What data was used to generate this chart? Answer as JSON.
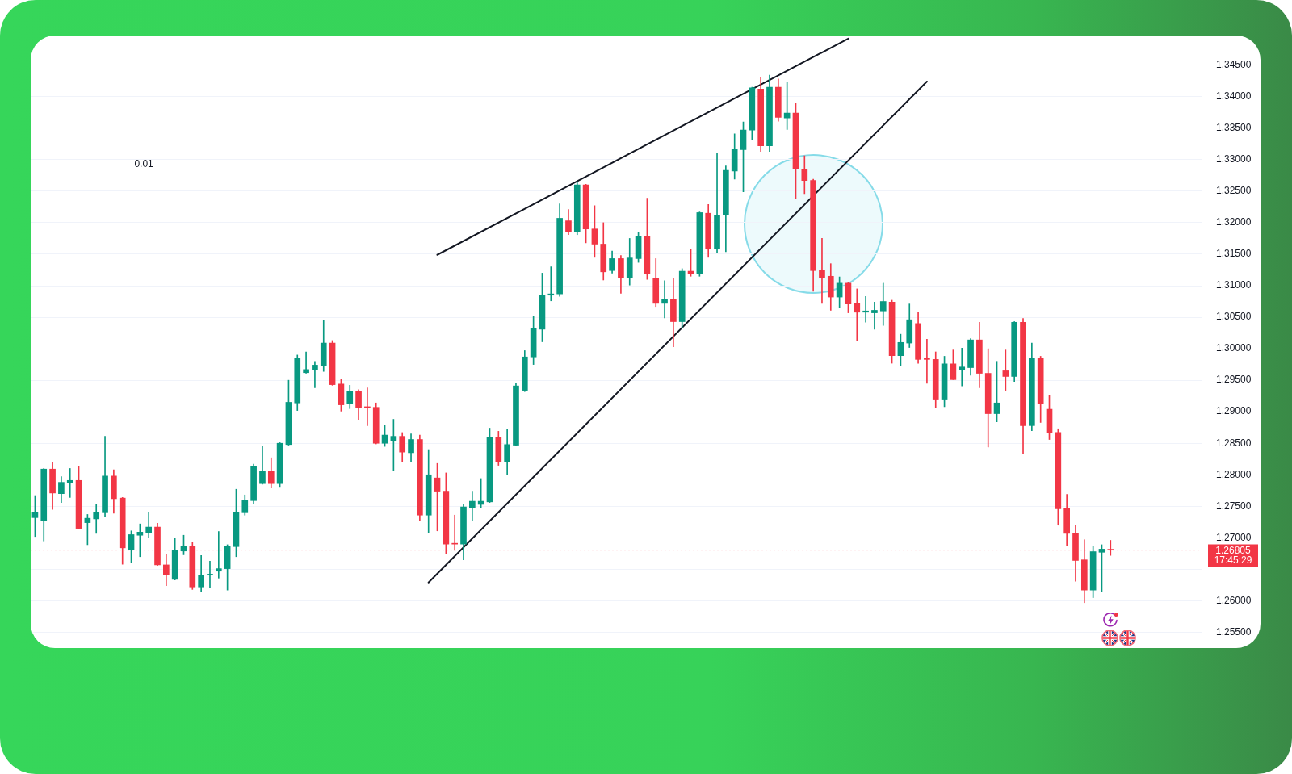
{
  "chart_data": {
    "type": "candlestick",
    "categories": [
      null,
      null,
      null,
      null,
      null,
      null,
      null,
      null,
      null,
      null,
      null,
      null,
      null,
      null,
      null,
      null,
      null,
      null,
      null,
      null,
      null,
      null,
      null,
      null,
      null,
      null,
      null,
      null,
      null,
      null,
      null,
      null,
      null,
      null,
      null,
      null,
      null,
      null,
      null,
      null,
      null,
      null,
      null,
      null,
      null,
      null,
      null,
      null,
      null,
      null,
      null,
      null,
      null,
      null,
      null,
      null,
      null,
      null,
      null,
      null,
      null,
      null,
      null,
      null,
      null,
      null,
      null,
      null,
      null,
      null,
      null,
      null,
      null,
      null,
      null,
      null,
      null,
      null,
      null,
      null,
      null,
      null,
      null,
      null,
      null,
      null,
      null,
      null,
      null,
      null,
      null,
      null,
      null,
      null,
      null,
      null,
      null,
      null,
      null,
      null,
      null,
      null,
      null,
      null,
      null,
      null,
      null,
      null,
      null,
      null,
      null,
      null,
      null,
      null,
      null,
      null,
      null,
      null,
      null,
      null,
      null,
      null,
      null,
      null,
      null,
      null,
      null,
      null,
      null,
      null,
      null,
      null,
      null,
      null
    ],
    "ohlc": [
      [
        1.2732,
        1.2767,
        1.2702,
        1.2741
      ],
      [
        1.2727,
        1.281,
        1.2695,
        1.2809
      ],
      [
        1.2809,
        1.2819,
        1.2745,
        1.2771
      ],
      [
        1.277,
        1.2797,
        1.2756,
        1.2788
      ],
      [
        1.2787,
        1.281,
        1.2764,
        1.2791
      ],
      [
        1.2791,
        1.2814,
        1.2714,
        1.2715
      ],
      [
        1.2724,
        1.2737,
        1.2689,
        1.2731
      ],
      [
        1.273,
        1.2753,
        1.2707,
        1.2741
      ],
      [
        1.2741,
        1.2861,
        1.2733,
        1.2798
      ],
      [
        1.2798,
        1.2808,
        1.2739,
        1.2762
      ],
      [
        1.2763,
        1.2764,
        1.2658,
        1.2684
      ],
      [
        1.2681,
        1.2711,
        1.2661,
        1.2705
      ],
      [
        1.2704,
        1.2722,
        1.267,
        1.2709
      ],
      [
        1.2708,
        1.2741,
        1.27,
        1.2717
      ],
      [
        1.2717,
        1.2723,
        1.2656,
        1.2657
      ],
      [
        1.2657,
        1.2674,
        1.2624,
        1.2641
      ],
      [
        1.2634,
        1.2699,
        1.2633,
        1.268
      ],
      [
        1.2679,
        1.2704,
        1.2673,
        1.2686
      ],
      [
        1.2686,
        1.2693,
        1.2618,
        1.2622
      ],
      [
        1.2622,
        1.2672,
        1.2615,
        1.2641
      ],
      [
        1.2641,
        1.2663,
        1.2621,
        1.2642
      ],
      [
        1.2647,
        1.271,
        1.2636,
        1.2651
      ],
      [
        1.2651,
        1.2689,
        1.2617,
        1.2686
      ],
      [
        1.2686,
        1.2777,
        1.267,
        1.2741
      ],
      [
        1.2741,
        1.2768,
        1.2736,
        1.2759
      ],
      [
        1.2759,
        1.2817,
        1.2754,
        1.2814
      ],
      [
        1.2786,
        1.2846,
        1.2785,
        1.2806
      ],
      [
        1.2806,
        1.2827,
        1.2779,
        1.2786
      ],
      [
        1.2786,
        1.2851,
        1.278,
        1.285
      ],
      [
        1.2848,
        1.295,
        1.2847,
        1.2915
      ],
      [
        1.2914,
        1.299,
        1.2902,
        1.2985
      ],
      [
        1.2962,
        1.2995,
        1.2961,
        1.2967
      ],
      [
        1.2967,
        1.298,
        1.2938,
        1.2974
      ],
      [
        1.2973,
        1.3045,
        1.2964,
        1.3009
      ],
      [
        1.3009,
        1.3013,
        1.2942,
        1.2943
      ],
      [
        1.2944,
        1.2951,
        1.2901,
        1.2911
      ],
      [
        1.2913,
        1.2942,
        1.2905,
        1.2933
      ],
      [
        1.2933,
        1.2935,
        1.2888,
        1.2906
      ],
      [
        1.2908,
        1.2938,
        1.2878,
        1.2906
      ],
      [
        1.2907,
        1.2914,
        1.2849,
        1.285
      ],
      [
        1.285,
        1.2878,
        1.2845,
        1.2863
      ],
      [
        1.2854,
        1.2888,
        1.2807,
        1.2861
      ],
      [
        1.2861,
        1.2867,
        1.2821,
        1.2836
      ],
      [
        1.2835,
        1.2865,
        1.282,
        1.2856
      ],
      [
        1.2856,
        1.2863,
        1.2727,
        1.2736
      ],
      [
        1.2736,
        1.284,
        1.2708,
        1.28
      ],
      [
        1.2795,
        1.2818,
        1.2711,
        1.2774
      ],
      [
        1.2774,
        1.2803,
        1.2674,
        1.269
      ],
      [
        1.2691,
        1.2736,
        1.268,
        1.269
      ],
      [
        1.269,
        1.2753,
        1.2665,
        1.2749
      ],
      [
        1.2748,
        1.2774,
        1.2727,
        1.2758
      ],
      [
        1.2753,
        1.2794,
        1.2748,
        1.2758
      ],
      [
        1.2757,
        1.2874,
        1.2756,
        1.2859
      ],
      [
        1.2859,
        1.2869,
        1.2815,
        1.282
      ],
      [
        1.282,
        1.2872,
        1.28,
        1.2848
      ],
      [
        1.2847,
        1.2946,
        1.2846,
        1.2941
      ],
      [
        1.2934,
        1.2997,
        1.2932,
        1.2987
      ],
      [
        1.2987,
        1.3052,
        1.2975,
        1.3032
      ],
      [
        1.3031,
        1.312,
        1.3011,
        1.3085
      ],
      [
        1.3085,
        1.313,
        1.3076,
        1.3087
      ],
      [
        1.3087,
        1.323,
        1.3083,
        1.3207
      ],
      [
        1.3203,
        1.3221,
        1.3181,
        1.3185
      ],
      [
        1.3185,
        1.3265,
        1.3181,
        1.326
      ],
      [
        1.326,
        1.3261,
        1.3168,
        1.319
      ],
      [
        1.319,
        1.3227,
        1.3145,
        1.3166
      ],
      [
        1.3166,
        1.32,
        1.3109,
        1.3122
      ],
      [
        1.3124,
        1.3155,
        1.312,
        1.3143
      ],
      [
        1.3143,
        1.3148,
        1.3088,
        1.3113
      ],
      [
        1.3113,
        1.3175,
        1.3101,
        1.3144
      ],
      [
        1.3143,
        1.3185,
        1.3137,
        1.3178
      ],
      [
        1.3178,
        1.3239,
        1.311,
        1.3119
      ],
      [
        1.3112,
        1.3143,
        1.3067,
        1.3072
      ],
      [
        1.3072,
        1.3108,
        1.3049,
        1.3079
      ],
      [
        1.3079,
        1.3112,
        1.3003,
        1.3043
      ],
      [
        1.3043,
        1.3127,
        1.3034,
        1.3123
      ],
      [
        1.3123,
        1.3158,
        1.3115,
        1.3119
      ],
      [
        1.3119,
        1.3217,
        1.3115,
        1.3216
      ],
      [
        1.3215,
        1.3229,
        1.3145,
        1.3158
      ],
      [
        1.3158,
        1.331,
        1.3152,
        1.3212
      ],
      [
        1.3212,
        1.329,
        1.3154,
        1.3283
      ],
      [
        1.3282,
        1.3341,
        1.3269,
        1.3317
      ],
      [
        1.3316,
        1.336,
        1.3249,
        1.3347
      ],
      [
        1.3347,
        1.3415,
        1.3332,
        1.3414
      ],
      [
        1.3412,
        1.343,
        1.3313,
        1.3322
      ],
      [
        1.3322,
        1.3434,
        1.3313,
        1.3415
      ],
      [
        1.3415,
        1.3428,
        1.3361,
        1.3367
      ],
      [
        1.3366,
        1.3423,
        1.3348,
        1.3374
      ],
      [
        1.3374,
        1.339,
        1.3238,
        1.3285
      ],
      [
        1.3285,
        1.3306,
        1.3246,
        1.3267
      ],
      [
        1.3267,
        1.3269,
        1.3091,
        1.3124
      ],
      [
        1.3124,
        1.3175,
        1.3072,
        1.3113
      ],
      [
        1.3115,
        1.3135,
        1.3061,
        1.3082
      ],
      [
        1.3082,
        1.3114,
        1.3065,
        1.3104
      ],
      [
        1.3104,
        1.3105,
        1.3057,
        1.3071
      ],
      [
        1.3072,
        1.3095,
        1.3013,
        1.3058
      ],
      [
        1.3058,
        1.3083,
        1.3042,
        1.306
      ],
      [
        1.3057,
        1.3074,
        1.3031,
        1.3061
      ],
      [
        1.306,
        1.3104,
        1.3037,
        1.3075
      ],
      [
        1.3074,
        1.3077,
        1.2977,
        1.2989
      ],
      [
        1.2989,
        1.3023,
        1.2973,
        1.301
      ],
      [
        1.3009,
        1.3071,
        1.3002,
        1.3046
      ],
      [
        1.304,
        1.3058,
        1.2977,
        1.2983
      ],
      [
        1.2985,
        1.3015,
        1.2945,
        1.2983
      ],
      [
        1.2983,
        1.2995,
        1.2907,
        1.292
      ],
      [
        1.292,
        1.2988,
        1.2908,
        1.2976
      ],
      [
        1.2976,
        1.2998,
        1.2951,
        1.2951
      ],
      [
        1.2967,
        1.3001,
        1.2941,
        1.2971
      ],
      [
        1.297,
        1.3016,
        1.2958,
        1.3014
      ],
      [
        1.3014,
        1.3042,
        1.2938,
        1.2961
      ],
      [
        1.2961,
        1.3,
        1.2844,
        1.2897
      ],
      [
        1.2897,
        1.298,
        1.2884,
        1.2914
      ],
      [
        1.2965,
        1.2998,
        1.2934,
        1.2956
      ],
      [
        1.2956,
        1.3043,
        1.2948,
        1.3042
      ],
      [
        1.3042,
        1.3048,
        1.2834,
        1.2878
      ],
      [
        1.2878,
        1.3009,
        1.287,
        1.2985
      ],
      [
        1.2985,
        1.2988,
        1.2883,
        1.2913
      ],
      [
        1.2904,
        1.2926,
        1.2856,
        1.2867
      ],
      [
        1.2867,
        1.2873,
        1.272,
        1.2746
      ],
      [
        1.2747,
        1.2769,
        1.2687,
        1.2707
      ],
      [
        1.2707,
        1.272,
        1.2631,
        1.2664
      ],
      [
        1.2665,
        1.2697,
        1.2597,
        1.2617
      ],
      [
        1.2617,
        1.2686,
        1.2605,
        1.2678
      ],
      [
        1.2677,
        1.2689,
        1.2614,
        1.2682
      ],
      [
        1.26813,
        1.2696,
        1.2672,
        1.26805
      ],
      null,
      null,
      null,
      null,
      null,
      null,
      null,
      null,
      null,
      null
    ],
    "colors": [
      "#089981",
      "#089981",
      "#f23645",
      "#089981",
      "#089981",
      "#f23645",
      "#089981",
      "#089981",
      "#089981",
      "#f23645",
      "#f23645",
      "#089981",
      "#089981",
      "#089981",
      "#f23645",
      "#f23645",
      "#089981",
      "#089981",
      "#f23645",
      "#089981",
      "#089981",
      "#089981",
      "#089981",
      "#089981",
      "#089981",
      "#089981",
      "#089981",
      "#f23645",
      "#089981",
      "#089981",
      "#089981",
      "#089981",
      "#089981",
      "#089981",
      "#f23645",
      "#f23645",
      "#089981",
      "#f23645",
      "#f23645",
      "#f23645",
      "#089981",
      "#089981",
      "#f23645",
      "#089981",
      "#f23645",
      "#089981",
      "#f23645",
      "#f23645",
      "#f23645",
      "#089981",
      "#089981",
      "#089981",
      "#089981",
      "#f23645",
      "#089981",
      "#089981",
      "#089981",
      "#089981",
      "#089981",
      "#089981",
      "#089981",
      "#f23645",
      "#089981",
      "#f23645",
      "#f23645",
      "#f23645",
      "#089981",
      "#f23645",
      "#089981",
      "#089981",
      "#f23645",
      "#f23645",
      "#089981",
      "#f23645",
      "#089981",
      "#f23645",
      "#089981",
      "#f23645",
      "#089981",
      "#089981",
      "#089981",
      "#089981",
      "#089981",
      "#f23645",
      "#089981",
      "#f23645",
      "#089981",
      "#f23645",
      "#f23645",
      "#f23645",
      "#f23645",
      "#f23645",
      "#089981",
      "#f23645",
      "#f23645",
      "#089981",
      "#089981",
      "#089981",
      "#f23645",
      "#089981",
      "#089981",
      "#f23645",
      "#f23645",
      "#f23645",
      "#089981",
      "#f23645",
      "#089981",
      "#089981",
      "#f23645",
      "#f23645",
      "#089981",
      "#f23645",
      "#089981",
      "#f23645",
      "#089981",
      "#f23645",
      "#f23645",
      "#f23645",
      "#f23645",
      "#f23645",
      "#f23645",
      "#089981",
      "#089981",
      "#f23645",
      null,
      null,
      null,
      null,
      null,
      null,
      null,
      null,
      null,
      null
    ],
    "series": [
      {
        "type": "line",
        "color": "#131722",
        "values": [
          null,
          null,
          null,
          null,
          null,
          null,
          null,
          null,
          null,
          null,
          null,
          null,
          null,
          null,
          null,
          null,
          null,
          null,
          null,
          null,
          null,
          null,
          null,
          null,
          null,
          null,
          null,
          null,
          null,
          null,
          null,
          null,
          null,
          null,
          null,
          null,
          null,
          null,
          null,
          null,
          null,
          null,
          null,
          null,
          null,
          1.2629,
          null,
          null,
          null,
          null,
          null,
          null,
          null,
          null,
          null,
          null,
          null,
          null,
          null,
          null,
          null,
          null,
          null,
          null,
          null,
          null,
          null,
          null,
          null,
          null,
          null,
          null,
          null,
          null,
          null,
          null,
          null,
          null,
          null,
          null,
          null,
          null,
          null,
          null,
          null,
          null,
          null,
          null,
          null,
          null,
          null,
          null,
          null,
          null,
          null,
          null,
          null,
          null,
          null,
          null,
          null,
          null,
          1.3424,
          null,
          null,
          null,
          null,
          null,
          null,
          null,
          null,
          null,
          null,
          null,
          null,
          null,
          null,
          null,
          null,
          null,
          null,
          null,
          null,
          null,
          null,
          null,
          null,
          null,
          null,
          null,
          null,
          null,
          null,
          null
        ]
      },
      {
        "type": "line",
        "color": "#131722",
        "values": [
          null,
          null,
          null,
          null,
          null,
          null,
          null,
          null,
          null,
          null,
          null,
          null,
          null,
          null,
          null,
          null,
          null,
          null,
          null,
          null,
          null,
          null,
          null,
          null,
          null,
          null,
          null,
          null,
          null,
          null,
          null,
          null,
          null,
          null,
          null,
          null,
          null,
          null,
          null,
          null,
          null,
          null,
          null,
          null,
          null,
          null,
          1.3149,
          null,
          null,
          null,
          null,
          null,
          null,
          null,
          null,
          null,
          null,
          null,
          null,
          null,
          null,
          null,
          null,
          null,
          null,
          null,
          null,
          null,
          null,
          null,
          null,
          null,
          null,
          null,
          null,
          null,
          null,
          null,
          null,
          null,
          null,
          null,
          null,
          null,
          null,
          null,
          null,
          null,
          null,
          null,
          null,
          null,
          null,
          1.3492,
          null,
          null,
          null,
          null,
          null,
          null,
          null,
          null,
          null,
          null,
          null,
          null,
          null,
          null,
          null,
          null,
          null,
          null,
          null,
          null,
          null,
          null,
          null,
          null,
          null,
          null,
          null,
          null,
          null,
          null,
          null,
          null,
          null,
          null,
          null,
          null,
          null,
          null,
          null,
          null
        ]
      }
    ],
    "ylim": [
      1.2525,
      1.3497
    ],
    "yticks": [
      {
        "value": 1.255,
        "label": "1.25500"
      },
      {
        "value": 1.26,
        "label": "1.26000"
      },
      {
        "value": 1.265,
        "label": null
      },
      {
        "value": 1.27,
        "label": "1.27000"
      },
      {
        "value": 1.275,
        "label": "1.27500"
      },
      {
        "value": 1.28,
        "label": "1.28000"
      },
      {
        "value": 1.285,
        "label": "1.28500"
      },
      {
        "value": 1.29,
        "label": "1.29000"
      },
      {
        "value": 1.295,
        "label": "1.29500"
      },
      {
        "value": 1.3,
        "label": "1.30000"
      },
      {
        "value": 1.305,
        "label": "1.30500"
      },
      {
        "value": 1.31,
        "label": "1.31000"
      },
      {
        "value": 1.315,
        "label": "1.31500"
      },
      {
        "value": 1.32,
        "label": "1.32000"
      },
      {
        "value": 1.325,
        "label": "1.32500"
      },
      {
        "value": 1.33,
        "label": "1.33000"
      },
      {
        "value": 1.335,
        "label": "1.33500"
      },
      {
        "value": 1.34,
        "label": "1.34000"
      },
      {
        "value": 1.345,
        "label": "1.34500"
      }
    ],
    "grid": "y",
    "tick_labels": "y",
    "ref_lines": [
      {
        "axis": "y",
        "value": 1.26805,
        "label": "1.26805\n17:45:29",
        "color": "#f23645",
        "line_style": "dotted"
      }
    ],
    "annotations": [
      "0.01"
    ]
  }
}
